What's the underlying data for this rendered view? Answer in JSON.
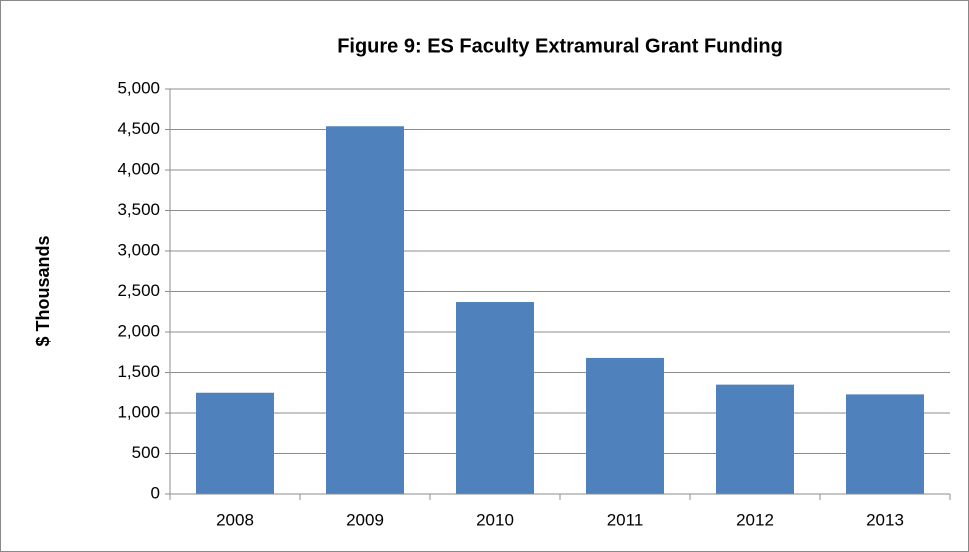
{
  "chart_data": {
    "type": "bar",
    "title": "Figure 9: ES Faculty Extramural Grant Funding",
    "y_label": "$ Thousands",
    "categories": [
      "2008",
      "2009",
      "2010",
      "2011",
      "2012",
      "2013"
    ],
    "values": [
      1250,
      4540,
      2370,
      1680,
      1350,
      1230
    ],
    "color": "#4f81bd",
    "ylim": [
      0,
      5000
    ],
    "yticks": [
      0,
      500,
      {
        "value": 1000,
        "label": "1,000"
      },
      {
        "value": 1500,
        "label": "1,500"
      },
      {
        "value": 2000,
        "label": "2,000"
      },
      {
        "value": 2500,
        "label": "2,500"
      },
      {
        "value": 3000,
        "label": "3,000"
      },
      {
        "value": 3500,
        "label": "3,500"
      },
      {
        "value": 4000,
        "label": "4,000"
      },
      {
        "value": 4500,
        "label": "4,500"
      },
      {
        "value": 5000,
        "label": "5,000"
      }
    ],
    "grid": true
  }
}
